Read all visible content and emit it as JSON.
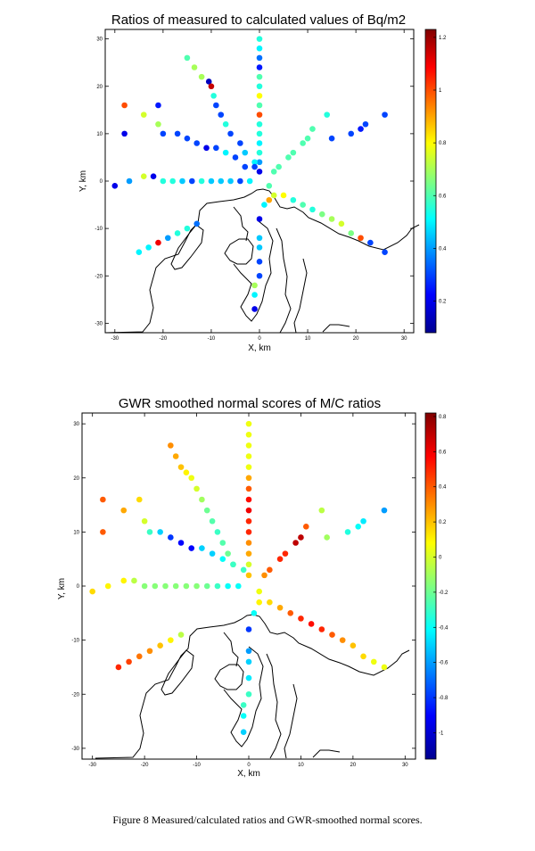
{
  "caption": "Figure 8  Measured/calculated ratios and GWR-smoothed normal scores.",
  "chart_data": [
    {
      "type": "scatter",
      "title": "Ratios of measured to calculated values of Bq/m2",
      "xlabel": "X, km",
      "ylabel": "Y, km",
      "xlim": [
        -32,
        32
      ],
      "ylim": [
        -32,
        32
      ],
      "xticks": [
        -30,
        -20,
        -10,
        0,
        10,
        20,
        30
      ],
      "yticks": [
        -30,
        -20,
        -10,
        0,
        10,
        20,
        30
      ],
      "colorbar": {
        "min": 0.08,
        "max": 1.23,
        "ticks": [
          0.2,
          0.4,
          0.6,
          0.8,
          1,
          1.2
        ]
      },
      "background": "coastline outline",
      "points": [
        [
          0,
          30,
          0.55
        ],
        [
          0,
          28,
          0.5
        ],
        [
          0,
          26,
          0.35
        ],
        [
          0,
          24,
          0.25
        ],
        [
          0,
          22,
          0.6
        ],
        [
          0,
          20,
          0.55
        ],
        [
          0,
          18,
          0.8
        ],
        [
          0,
          16,
          0.6
        ],
        [
          0,
          14,
          1.0
        ],
        [
          0,
          12,
          0.55
        ],
        [
          0,
          10,
          0.55
        ],
        [
          0,
          8,
          0.5
        ],
        [
          0,
          6,
          0.55
        ],
        [
          0,
          4,
          0.4
        ],
        [
          0,
          2,
          0.2
        ],
        [
          -15,
          26,
          0.6
        ],
        [
          -13.5,
          24,
          0.7
        ],
        [
          -12,
          22,
          0.7
        ],
        [
          -10.5,
          21,
          0.15
        ],
        [
          -10,
          20,
          1.15
        ],
        [
          -9.5,
          18,
          0.55
        ],
        [
          -9,
          16,
          0.3
        ],
        [
          -8,
          14,
          0.3
        ],
        [
          -7,
          12,
          0.55
        ],
        [
          -6,
          10,
          0.3
        ],
        [
          -4,
          8,
          0.3
        ],
        [
          -3,
          6,
          0.45
        ],
        [
          -1,
          4,
          0.5
        ],
        [
          -21,
          16,
          0.25
        ],
        [
          -21,
          12,
          0.7
        ],
        [
          -20,
          10,
          0.3
        ],
        [
          -17,
          10,
          0.3
        ],
        [
          -15,
          9,
          0.3
        ],
        [
          -13,
          8,
          0.3
        ],
        [
          -11,
          7,
          0.2
        ],
        [
          -9,
          7,
          0.3
        ],
        [
          -7,
          6,
          0.5
        ],
        [
          -5,
          5,
          0.3
        ],
        [
          -3,
          3,
          0.3
        ],
        [
          -1,
          3,
          0.3
        ],
        [
          -28,
          16,
          1.0
        ],
        [
          -28,
          10,
          0.2
        ],
        [
          -24,
          14,
          0.75
        ],
        [
          -30,
          -1,
          0.2
        ],
        [
          -27,
          0,
          0.4
        ],
        [
          -24,
          1,
          0.75
        ],
        [
          -22,
          1,
          0.2
        ],
        [
          -20,
          0,
          0.55
        ],
        [
          -18,
          0,
          0.55
        ],
        [
          -16,
          0,
          0.45
        ],
        [
          -14,
          0,
          0.3
        ],
        [
          -12,
          0,
          0.55
        ],
        [
          -10,
          0,
          0.45
        ],
        [
          -8,
          0,
          0.45
        ],
        [
          -6,
          0,
          0.45
        ],
        [
          -4,
          0,
          0.3
        ],
        [
          -2,
          0,
          0.5
        ],
        [
          -25,
          -15,
          0.5
        ],
        [
          -23,
          -14,
          0.5
        ],
        [
          -21,
          -13,
          1.1
        ],
        [
          -19,
          -12,
          0.4
        ],
        [
          -17,
          -11,
          0.55
        ],
        [
          -15,
          -10,
          0.55
        ],
        [
          -13,
          -9,
          0.35
        ],
        [
          26,
          14,
          0.3
        ],
        [
          22,
          12,
          0.3
        ],
        [
          21,
          11,
          0.25
        ],
        [
          19,
          10,
          0.3
        ],
        [
          15,
          9,
          0.3
        ],
        [
          14,
          14,
          0.55
        ],
        [
          11,
          11,
          0.6
        ],
        [
          10,
          9,
          0.6
        ],
        [
          9,
          8,
          0.6
        ],
        [
          7,
          6,
          0.6
        ],
        [
          6,
          5,
          0.6
        ],
        [
          4,
          3,
          0.6
        ],
        [
          3,
          2,
          0.6
        ],
        [
          2,
          -1,
          0.6
        ],
        [
          26,
          -15,
          0.3
        ],
        [
          23,
          -13,
          0.3
        ],
        [
          21,
          -12,
          1.0
        ],
        [
          19,
          -11,
          0.65
        ],
        [
          17,
          -9,
          0.75
        ],
        [
          15,
          -8,
          0.7
        ],
        [
          13,
          -7,
          0.65
        ],
        [
          11,
          -6,
          0.55
        ],
        [
          9,
          -5,
          0.6
        ],
        [
          7,
          -4,
          0.55
        ],
        [
          5,
          -3,
          0.8
        ],
        [
          3,
          -3,
          0.75
        ],
        [
          2,
          -4,
          0.9
        ],
        [
          1,
          -5,
          0.5
        ],
        [
          0,
          -8,
          0.2
        ],
        [
          0,
          -12,
          0.45
        ],
        [
          0,
          -14,
          0.45
        ],
        [
          0,
          -17,
          0.3
        ],
        [
          0,
          -20,
          0.3
        ],
        [
          -1,
          -22,
          0.7
        ],
        [
          -1,
          -24,
          0.5
        ],
        [
          -1,
          -27,
          0.2
        ]
      ]
    },
    {
      "type": "scatter",
      "title": "GWR smoothed normal scores of M/C ratios",
      "xlabel": "X, km",
      "ylabel": "Y, km",
      "xlim": [
        -32,
        32
      ],
      "ylim": [
        -32,
        32
      ],
      "xticks": [
        -30,
        -20,
        -10,
        0,
        10,
        20,
        30
      ],
      "yticks": [
        -30,
        -20,
        -10,
        0,
        10,
        20,
        30
      ],
      "colorbar": {
        "min": -1.15,
        "max": 0.82,
        "ticks": [
          0.8,
          0.6,
          0.4,
          0.2,
          0,
          -0.2,
          -0.4,
          -0.6,
          -0.8,
          -1
        ]
      },
      "background": "coastline outline",
      "points": [
        [
          0,
          30,
          0.05
        ],
        [
          0,
          28,
          0.05
        ],
        [
          0,
          26,
          0.05
        ],
        [
          0,
          24,
          0.05
        ],
        [
          0,
          22,
          0.05
        ],
        [
          0,
          20,
          0.25
        ],
        [
          0,
          18,
          0.4
        ],
        [
          0,
          16,
          0.55
        ],
        [
          0,
          14,
          0.6
        ],
        [
          0,
          12,
          0.5
        ],
        [
          0,
          10,
          0.5
        ],
        [
          0,
          8,
          0.3
        ],
        [
          0,
          6,
          0.25
        ],
        [
          0,
          4,
          0.0
        ],
        [
          0,
          2,
          0.2
        ],
        [
          -15,
          26,
          0.3
        ],
        [
          -14,
          24,
          0.25
        ],
        [
          -13,
          22,
          0.2
        ],
        [
          -12,
          21,
          0.1
        ],
        [
          -11,
          20,
          0.05
        ],
        [
          -10,
          18,
          0.0
        ],
        [
          -9,
          16,
          -0.1
        ],
        [
          -8,
          14,
          -0.2
        ],
        [
          -7,
          12,
          -0.25
        ],
        [
          -6,
          10,
          -0.3
        ],
        [
          -5,
          8,
          -0.25
        ],
        [
          -4,
          6,
          -0.2
        ],
        [
          -3,
          4,
          -0.1
        ],
        [
          -21,
          16,
          0.15
        ],
        [
          -20,
          12,
          0.0
        ],
        [
          -19,
          10,
          -0.3
        ],
        [
          -17,
          10,
          -0.5
        ],
        [
          -15,
          9,
          -0.8
        ],
        [
          -13,
          8,
          -0.9
        ],
        [
          -11,
          7,
          -0.9
        ],
        [
          -9,
          7,
          -0.5
        ],
        [
          -7,
          6,
          -0.5
        ],
        [
          -5,
          5,
          -0.4
        ],
        [
          -3,
          4,
          -0.3
        ],
        [
          -1,
          3,
          -0.3
        ],
        [
          -28,
          16,
          0.4
        ],
        [
          -28,
          10,
          0.4
        ],
        [
          -24,
          14,
          0.25
        ],
        [
          -30,
          -1,
          0.15
        ],
        [
          -27,
          0,
          0.1
        ],
        [
          -24,
          1,
          0.1
        ],
        [
          -22,
          1,
          -0.05
        ],
        [
          -20,
          0,
          -0.15
        ],
        [
          -18,
          0,
          -0.15
        ],
        [
          -16,
          0,
          -0.15
        ],
        [
          -14,
          0,
          -0.15
        ],
        [
          -12,
          0,
          -0.15
        ],
        [
          -10,
          0,
          -0.15
        ],
        [
          -8,
          0,
          -0.2
        ],
        [
          -6,
          0,
          -0.3
        ],
        [
          -4,
          0,
          -0.4
        ],
        [
          -2,
          0,
          -0.4
        ],
        [
          -25,
          -15,
          0.5
        ],
        [
          -23,
          -14,
          0.45
        ],
        [
          -21,
          -13,
          0.35
        ],
        [
          -19,
          -12,
          0.3
        ],
        [
          -17,
          -11,
          0.2
        ],
        [
          -15,
          -10,
          0.1
        ],
        [
          -13,
          -9,
          -0.05
        ],
        [
          26,
          14,
          -0.6
        ],
        [
          22,
          12,
          -0.45
        ],
        [
          21,
          11,
          -0.4
        ],
        [
          19,
          10,
          -0.35
        ],
        [
          15,
          9,
          -0.1
        ],
        [
          14,
          14,
          -0.05
        ],
        [
          11,
          11,
          0.4
        ],
        [
          10,
          9,
          0.7
        ],
        [
          9,
          8,
          0.7
        ],
        [
          7,
          6,
          0.5
        ],
        [
          6,
          5,
          0.5
        ],
        [
          4,
          3,
          0.4
        ],
        [
          3,
          2,
          0.3
        ],
        [
          2,
          -1,
          0.05
        ],
        [
          26,
          -15,
          0.05
        ],
        [
          24,
          -14,
          0.05
        ],
        [
          22,
          -13,
          0.15
        ],
        [
          20,
          -11,
          0.2
        ],
        [
          18,
          -10,
          0.3
        ],
        [
          16,
          -9,
          0.4
        ],
        [
          14,
          -8,
          0.5
        ],
        [
          12,
          -7,
          0.55
        ],
        [
          10,
          -6,
          0.5
        ],
        [
          8,
          -5,
          0.4
        ],
        [
          6,
          -4,
          0.25
        ],
        [
          4,
          -3,
          0.15
        ],
        [
          2,
          -3,
          0.1
        ],
        [
          1,
          -5,
          -0.4
        ],
        [
          0,
          -8,
          -0.8
        ],
        [
          0,
          -12,
          -0.6
        ],
        [
          0,
          -14,
          -0.5
        ],
        [
          0,
          -17,
          -0.45
        ],
        [
          0,
          -20,
          -0.3
        ],
        [
          -1,
          -22,
          -0.3
        ],
        [
          -1,
          -24,
          -0.4
        ],
        [
          -1,
          -27,
          -0.5
        ]
      ]
    }
  ]
}
